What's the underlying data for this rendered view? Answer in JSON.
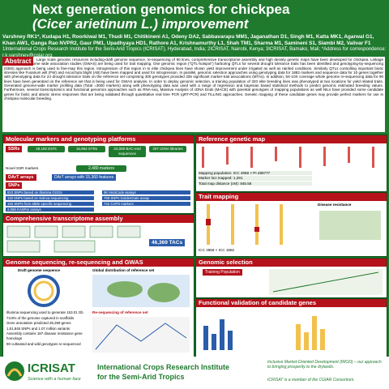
{
  "header": {
    "title_line1": "Next generation genomics for chickpea",
    "title_line2": "(Cicer arietinum L.) improvement",
    "authors": "Varshney RK1*, Kudapa H1, Roorkiwal M1, Thudi M1, Chitikineni A1, Odeny DA2, Sabbavarapu MM1, Jaganathan D1, Singh M1, Katta MK1, Agarwal G1, Khan AW1, Ganga Rao NVPR2, Gaur PM1, Upadhyaya HD1, Rathore A1, Krishnamurthy L1, Shah TM1, Sharma M1, Samineni S1, Siambi M2, Valivar F1",
    "affiliations": "1International Crops Research Institute for the Semi-Arid Tropics (ICRISAT), Hyderabad, India; 2ICRISAT, Nairobi, Kenya; 3ICRISAT, Bamako, Mali; *Address for correspondence: r.k.varshney@cgiar.org"
  },
  "abstract": {
    "label": "Abstract",
    "text": "Large scale genomic resources including-draft genome sequence, re-sequencing of 90 lines, comprehensive transcriptome assembly and high density genetic maps have been developed for chickpea. Linkage mapping and genome wide association studies (GWAS) are being used for trait mapping. One genomic region (\"QTL-hotspot\") harboring QTLs for several drought tolerance traits has been identified and genotyping-by-sequencing (GBS) approach is being used to fine-map this region. Introgression of this region in to elite chickpea lines have shown yield improvement under irrigated as well as rainfed conditions. Similarly QTLs controlling important biotic stresses like Fusarium wilt (FW) and Ascochyta blight (AB) have been mapped and used for introgression. In parallel, genomic selection approaches using genotyping data for 1882 markers and sequence data for 10 genes together with phenotyping data for 24 drought tolerance traits on the reference set comprising 300 genotypes provided 335 significant marker-trait associations (MTAs). In addition, 5X-10X coverage whole genome re-sequencing data for 90 lines have been generated on the reference set that is being used for GWAS analysis. In order to deploy genomic selection, a training population of 320 elite breeding lines was phenotyped at two locations for yield related traits. Generated genome-wide marker profiling data (Total =3000 markers) along with phenotyping data was used with a range of regression and bayesian based statistical methods to predict genomic estimated breeding values. Furthermore, several transcriptomics and functional genomics approaches such as RNA-seq, Massive Analysis of cDNA Ends (MACE) with parental genotypes of mapping populations as well NILs have provided some candidate genes for biotic and abiotic stress responses that are being validated through quantitative real time PCR (qRT-PCR) and TILLING approaches. Genetic mapping of these candidate genes may provide perfect markers for use in chickpea molecular breeding."
  },
  "sections": {
    "markers": {
      "title": "Molecular markers and genotyping platforms",
      "ssrs": "SSRs",
      "ssr_boxes": [
        "28,182 ESTs",
        "16,954 STRs",
        "24,000 BAC-end sequences",
        "207 cDNA libraries"
      ],
      "novel": "Novel SSR markers",
      "total": "2,480 markers",
      "dart": "DArT arrays",
      "dart_text": "DArT arrays with 15,360 features",
      "snps": "SNPs",
      "snp_items": [
        "810 SNPs based on Illumina GGGs",
        "96 VeraCode assays",
        "118 SNPs based on Solexa sequencing",
        "768 SNPs GoldenGate assay",
        "183 SNPs from allele specific sequencing",
        "742 CAPS markers",
        "2,068 KASPar assays"
      ]
    },
    "genetic_map": {
      "title": "Reference genetic map",
      "rows": [
        "Mapping population: ICC 4958 × PI 489777",
        "Marker loci mapped: 1,291",
        "Total map distance (cM): 845.56"
      ]
    },
    "transcriptome": {
      "title": "Comprehensive transcriptome assembly",
      "tacs": "46,369 TACs"
    },
    "trait_mapping": {
      "title": "Trait mapping",
      "disease": "Disease resistance",
      "caption": "ICC 4958 × ICC 1882"
    },
    "genome": {
      "title": "Genome sequencing, re-sequencing and GWAS",
      "draft": "Draft genome sequence",
      "global": "Global distribution of reference set",
      "reseq": "Re-sequencing of reference set",
      "bullets": [
        "Illumina sequencing used to generate 153.01 Gb",
        "73.8% of the genome captured in scaffolds",
        "Gene annotation predicted 28,269 genes",
        "1,51,845 SNPs and 1.07 million variants",
        "Assembly contains 187 disease resistance gene homologs",
        "90 cultivated and wild genotypes re-sequenced"
      ]
    },
    "genomic_selection": {
      "title": "Genomic selection",
      "training": "Training Population"
    },
    "functional": {
      "title": "Functional validation of candidate genes"
    }
  },
  "footer": {
    "org": "ICRISAT",
    "tagline": "Science with a human face",
    "name_line1": "International Crops Research Institute",
    "name_line2": "for the Semi-Arid Tropics",
    "imod": "Inclusive Market-Oriented Development (IMOD) – our approach to bringing prosperity to the drylands.",
    "cgiar": "ICRISAT is a member of the CGIAR Consortium."
  }
}
